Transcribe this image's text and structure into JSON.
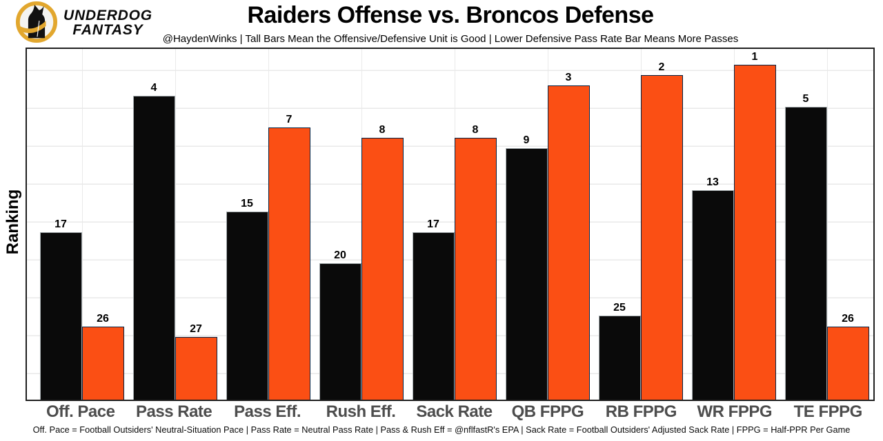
{
  "brand": {
    "line1": "UNDERDOG",
    "line2": "FANTASY",
    "gold": "#E2A72E"
  },
  "chart_data": {
    "type": "bar",
    "title": "Raiders Offense vs. Broncos Defense",
    "subtitle": "@HaydenWinks | Tall Bars Mean the Offensive/Defensive Unit is Good | Lower Defensive Pass Rate Bar Means More Passes",
    "ylabel": "Ranking",
    "xlabel": "",
    "categories": [
      "Off. Pace",
      "Pass Rate",
      "Pass Eff.",
      "Rush Eff.",
      "Sack Rate",
      "QB FPPG",
      "RB FPPG",
      "WR FPPG",
      "TE FPPG"
    ],
    "series": [
      {
        "name": "Raiders Offense",
        "fill": "#0a0a0a",
        "border": "#A5ACAF",
        "values": [
          17,
          4,
          15,
          20,
          17,
          9,
          25,
          13,
          5
        ]
      },
      {
        "name": "Broncos Defense",
        "fill": "#FB4F14",
        "border": "#002244",
        "values": [
          26,
          27,
          7,
          8,
          8,
          3,
          2,
          1,
          26
        ]
      }
    ],
    "value_meaning": "NFL ranking, 1 = best; taller bar = better unit; bar height = 33 - rank",
    "axis": {
      "height_base": 33,
      "units_max": 33.5,
      "grid": true,
      "legend": "none"
    }
  },
  "footer": {
    "text": "Off. Pace = Football Outsiders' Neutral-Situation Pace | Pass Rate = Neutral Pass Rate | Pass & Rush Eff = @nflfastR's EPA | Sack Rate = Football Outsiders' Adjusted Sack Rate | FPPG = Half-PPR Per Game"
  }
}
